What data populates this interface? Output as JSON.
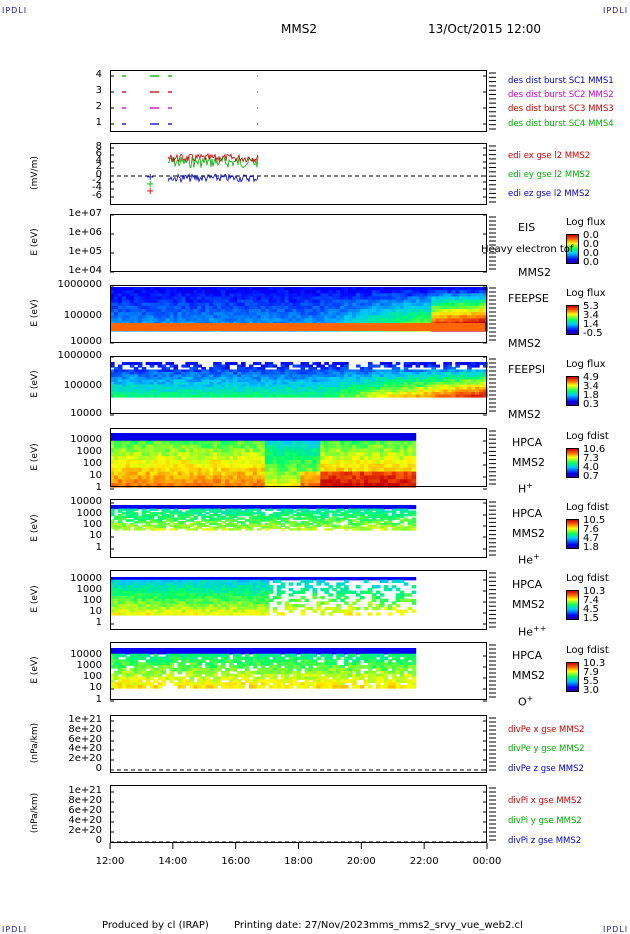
{
  "corner_label": "IPDLI",
  "header": {
    "mission": "MMS2",
    "datetime": "13/Oct/2015 12:00"
  },
  "footer": {
    "produced": "Produced by cl (IRAP)",
    "printing": "Printing date: 27/Nov/2023",
    "script": "mms_mms2_srvy_vue_web2.cl"
  },
  "colors": {
    "red": "#d00000",
    "magenta": "#d000d0",
    "green": "#00b000",
    "blue": "#0000c8"
  },
  "chart_data": [
    {
      "type": "line",
      "id": "burst",
      "ylabel": "",
      "yticks": [
        "4",
        "3",
        "2",
        "1"
      ],
      "legend": [
        "des dist burst SC1 MMS1",
        "des dist burst SC2 MMS2",
        "des dist burst SC3 MMS3",
        "des dist burst SC4 MMS4"
      ]
    },
    {
      "type": "line",
      "id": "edi",
      "ylabel": "(mV/m)",
      "yticks": [
        "8",
        "6",
        "4",
        "2",
        "0",
        "-2",
        "-4",
        "-6"
      ],
      "ylim": [
        -6,
        8
      ],
      "legend": [
        "edi ex gse l2 MMS2",
        "edi ey gse l2 MMS2",
        "edi ez gse l2 MMS2"
      ]
    },
    {
      "type": "heatmap",
      "id": "eis",
      "ylabel": "E (eV)",
      "yticks": [
        "1e+07",
        "1e+06",
        "1e+05",
        "1e+04"
      ],
      "side": [
        "EIS",
        "MMS2"
      ],
      "overlay": "Heavy electron tof",
      "cbar_title": "Log flux",
      "cbar_values": [
        "0.0",
        "0.0",
        "0.0",
        "0.0"
      ]
    },
    {
      "type": "heatmap",
      "id": "feepse",
      "ylabel": "E (eV)",
      "yticks": [
        "1000000",
        "100000",
        "10000"
      ],
      "side": [
        "FEEPSE",
        "MMS2"
      ],
      "cbar_title": "Log flux",
      "cbar_values": [
        "5.3",
        "3.4",
        "1.4",
        "-0.5"
      ]
    },
    {
      "type": "heatmap",
      "id": "feepsi",
      "ylabel": "E (eV)",
      "yticks": [
        "1000000",
        "100000",
        "10000"
      ],
      "side": [
        "FEEPSI",
        "MMS2"
      ],
      "cbar_title": "Log flux",
      "cbar_values": [
        "4.9",
        "3.4",
        "1.8",
        "0.3"
      ]
    },
    {
      "type": "heatmap",
      "id": "hpca_h",
      "ylabel": "E (eV)",
      "yticks": [
        "10000",
        "1000",
        "100",
        "10",
        "1"
      ],
      "side": [
        "HPCA",
        "MMS2"
      ],
      "species": "H",
      "charge": "+",
      "cbar_title": "Log fdist",
      "cbar_values": [
        "10.6",
        "7.3",
        "4.0",
        "0.7"
      ]
    },
    {
      "type": "heatmap",
      "id": "hpca_he",
      "ylabel": "E (eV)",
      "yticks": [
        "10000",
        "1000",
        "100",
        "10",
        "1"
      ],
      "side": [
        "HPCA",
        "MMS2"
      ],
      "species": "He",
      "charge": "+",
      "cbar_title": "Log fdist",
      "cbar_values": [
        "10.5",
        "7.6",
        "4.7",
        "1.8"
      ]
    },
    {
      "type": "heatmap",
      "id": "hpca_he2",
      "ylabel": "E (eV)",
      "yticks": [
        "10000",
        "1000",
        "100",
        "10",
        "1"
      ],
      "side": [
        "HPCA",
        "MMS2"
      ],
      "species": "He",
      "charge": "++",
      "cbar_title": "Log fdist",
      "cbar_values": [
        "10.3",
        "7.4",
        "4.5",
        "1.5"
      ]
    },
    {
      "type": "heatmap",
      "id": "hpca_o",
      "ylabel": "E (eV)",
      "yticks": [
        "10000",
        "1000",
        "100",
        "10",
        "1"
      ],
      "side": [
        "HPCA",
        "MMS2"
      ],
      "species": "O",
      "charge": "+",
      "cbar_title": "Log fdist",
      "cbar_values": [
        "10.3",
        "7.9",
        "5.5",
        "3.0"
      ]
    },
    {
      "type": "line",
      "id": "divpe",
      "ylabel": "(nPa/km)",
      "yticks": [
        "1e+21",
        "8e+20",
        "6e+20",
        "4e+20",
        "2e+20",
        "0"
      ],
      "legend": [
        "divPe x gse MMS2",
        "divPe y gse MMS2",
        "divPe z gse MMS2"
      ]
    },
    {
      "type": "line",
      "id": "divpi",
      "ylabel": "(nPa/km)",
      "yticks": [
        "1e+21",
        "8e+20",
        "6e+20",
        "4e+20",
        "2e+20",
        "0"
      ],
      "legend": [
        "divPi x gse MMS2",
        "divPi y gse MMS2",
        "divPi z gse MMS2"
      ]
    }
  ],
  "xaxis": {
    "ticks": [
      "12:00",
      "14:00",
      "16:00",
      "18:00",
      "20:00",
      "22:00",
      "00:00"
    ]
  }
}
